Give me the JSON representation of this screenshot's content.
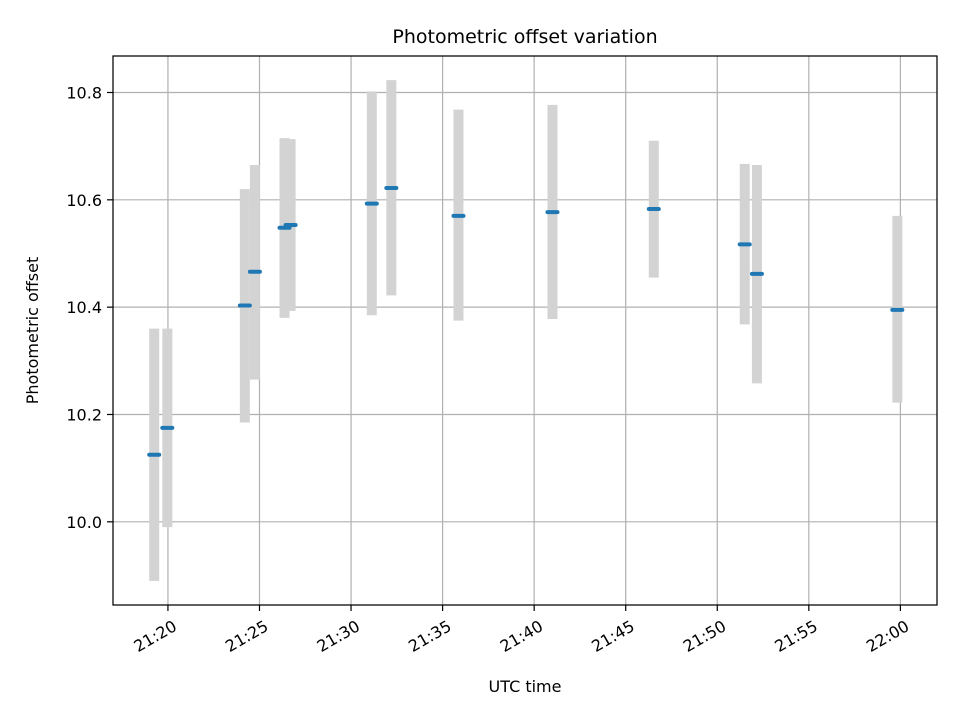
{
  "chart_data": {
    "type": "scatter",
    "title": "Photometric offset variation",
    "xlabel": "UTC time",
    "ylabel": "Photometric offset",
    "xlim": [
      "21:17:00",
      "22:02:00"
    ],
    "ylim": [
      9.845,
      10.868
    ],
    "grid": true,
    "x_ticks": [
      "21:20",
      "21:25",
      "21:30",
      "21:35",
      "21:40",
      "21:45",
      "21:50",
      "21:55",
      "22:00"
    ],
    "y_ticks": [
      "10.0",
      "10.2",
      "10.4",
      "10.6",
      "10.8"
    ],
    "colors": {
      "point": "#1f77b4",
      "error_band": "#d3d3d3",
      "grid": "#b0b0b0"
    },
    "points": [
      {
        "time": "21:19:15",
        "value": 10.125,
        "low": 9.89,
        "high": 10.36
      },
      {
        "time": "21:19:58",
        "value": 10.175,
        "low": 9.99,
        "high": 10.36
      },
      {
        "time": "21:24:12",
        "value": 10.403,
        "low": 10.185,
        "high": 10.62
      },
      {
        "time": "21:24:45",
        "value": 10.466,
        "low": 10.265,
        "high": 10.665
      },
      {
        "time": "21:26:22",
        "value": 10.548,
        "low": 10.38,
        "high": 10.715
      },
      {
        "time": "21:26:42",
        "value": 10.553,
        "low": 10.393,
        "high": 10.713
      },
      {
        "time": "21:31:08",
        "value": 10.593,
        "low": 10.385,
        "high": 10.802
      },
      {
        "time": "21:32:12",
        "value": 10.622,
        "low": 10.422,
        "high": 10.823
      },
      {
        "time": "21:35:52",
        "value": 10.57,
        "low": 10.375,
        "high": 10.768
      },
      {
        "time": "21:41:00",
        "value": 10.577,
        "low": 10.378,
        "high": 10.777
      },
      {
        "time": "21:46:32",
        "value": 10.583,
        "low": 10.455,
        "high": 10.71
      },
      {
        "time": "21:51:30",
        "value": 10.517,
        "low": 10.368,
        "high": 10.667
      },
      {
        "time": "21:52:10",
        "value": 10.462,
        "low": 10.258,
        "high": 10.665
      },
      {
        "time": "21:59:50",
        "value": 10.395,
        "low": 10.222,
        "high": 10.57
      }
    ]
  }
}
